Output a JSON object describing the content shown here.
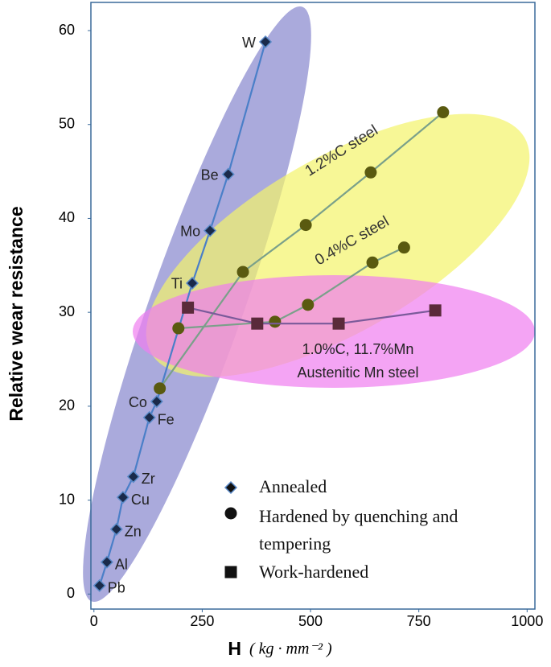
{
  "chart_data": {
    "type": "scatter",
    "x_label": "H",
    "x_unit": "( kg · mm⁻² )",
    "y_label": "Relative wear resistance",
    "xlim": [
      -7,
      1018
    ],
    "ylim": [
      -1.6,
      63
    ],
    "xticks": [
      0,
      250,
      500,
      750,
      1000
    ],
    "yticks": [
      0,
      10,
      20,
      30,
      40,
      50,
      60
    ],
    "series": [
      {
        "name": "Annealed",
        "marker": "diamond",
        "color": "#1a2a4a",
        "line_color": "#4a7fc8",
        "labels": [
          "Pb",
          "Al",
          "Zn",
          "Cu",
          "Zr",
          "Fe",
          "Co",
          "Ti",
          "Mo",
          "Be",
          "W"
        ],
        "x": [
          13,
          30,
          52,
          67,
          91,
          128,
          145,
          227,
          268,
          310,
          396
        ],
        "values": [
          0.9,
          3.4,
          6.9,
          10.3,
          12.5,
          18.8,
          20.5,
          33.1,
          38.7,
          44.7,
          58.8
        ]
      },
      {
        "name": "Hardened by quenching and tempering",
        "marker": "circle",
        "color": "#5a5a10",
        "line_color": "#7aa08a",
        "groups": [
          {
            "label": "1.2%C steel",
            "x": [
              152,
              344,
              489,
              639,
              806
            ],
            "values": [
              21.9,
              34.3,
              39.3,
              44.9,
              51.3
            ]
          },
          {
            "label": "0.4%C steel",
            "x": [
              195,
              418,
              494,
              643,
              716
            ],
            "values": [
              28.3,
              29.0,
              30.8,
              35.3,
              36.9
            ]
          }
        ]
      },
      {
        "name": "Work-hardened",
        "marker": "square",
        "color": "#5a2a3a",
        "line_color": "#7a5a9a",
        "label_lines": [
          "1.0%C, 11.7%Mn",
          "Austenitic Mn steel"
        ],
        "x": [
          217,
          377,
          565,
          788
        ],
        "values": [
          30.5,
          28.8,
          28.8,
          30.2
        ]
      }
    ]
  }
}
